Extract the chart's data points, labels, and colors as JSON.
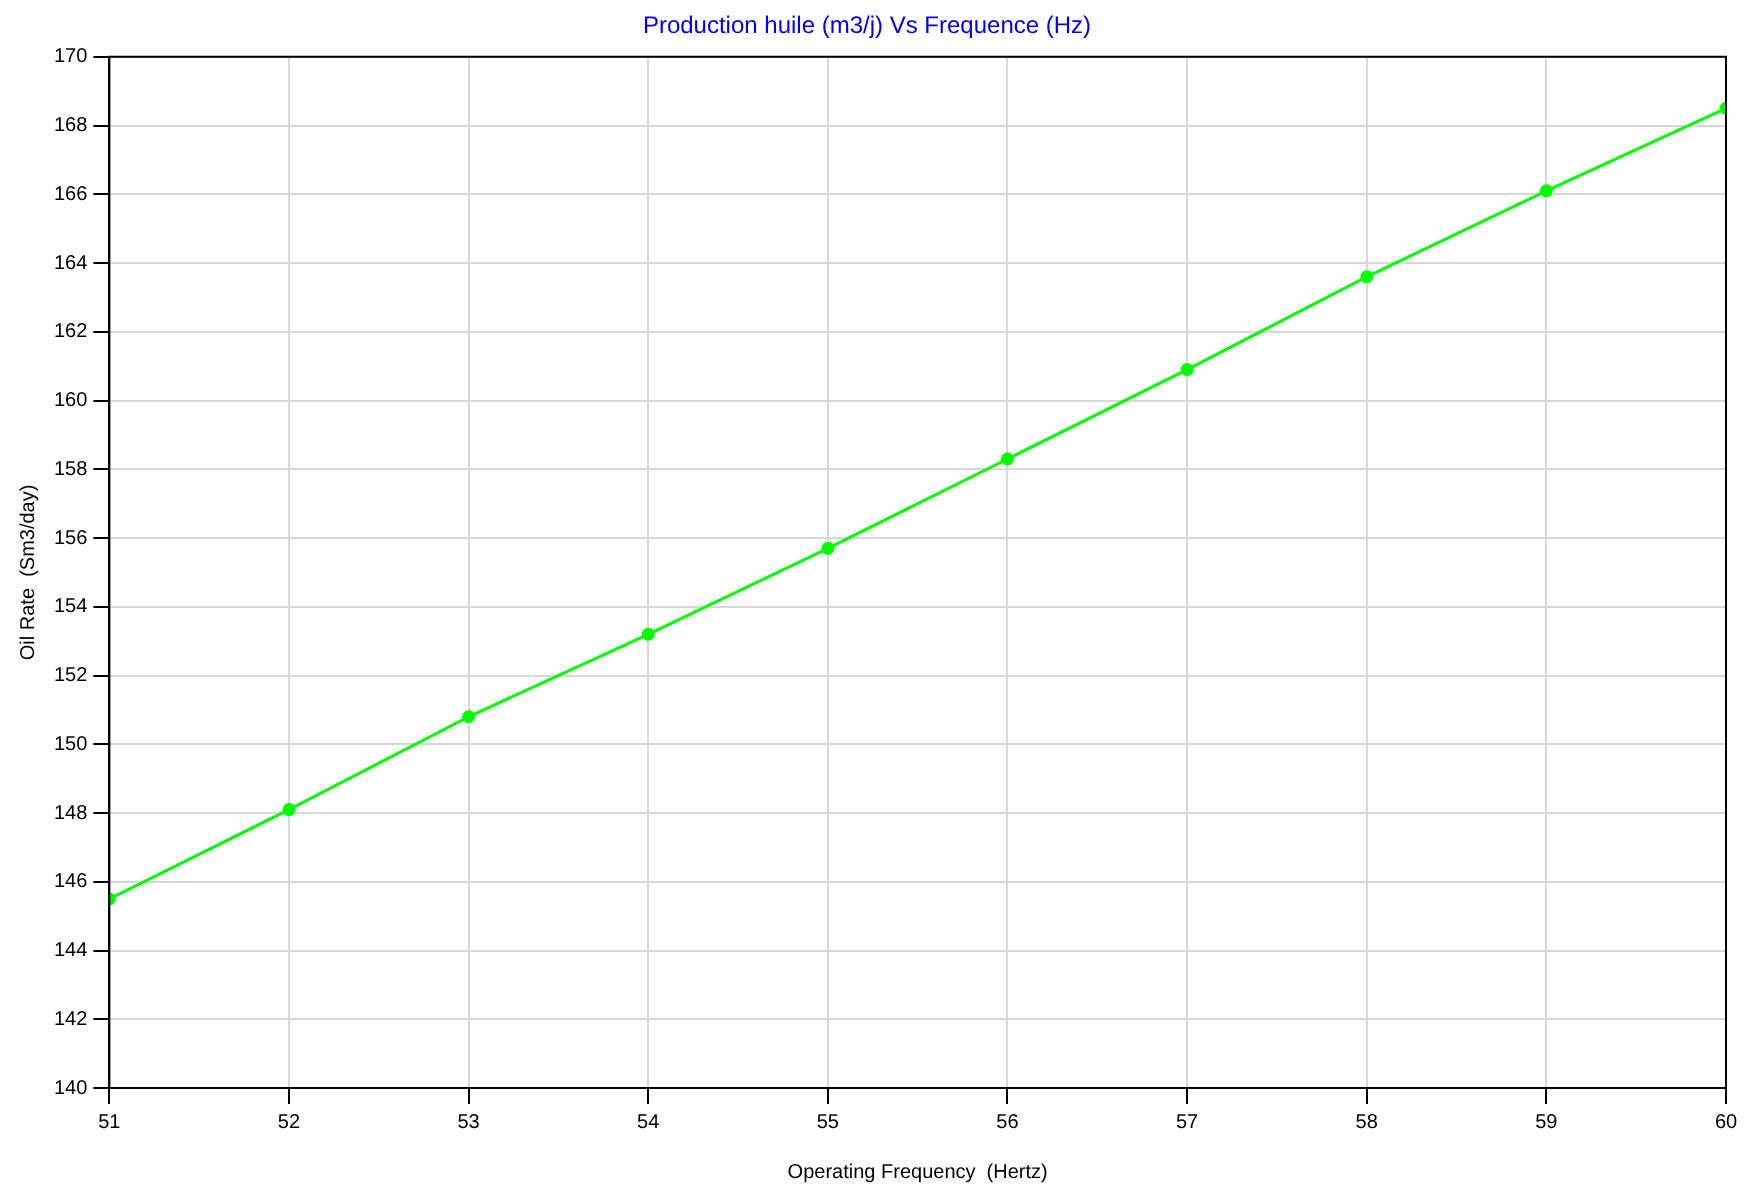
{
  "chart_data": {
    "type": "line",
    "title": "Production huile (m3/j) Vs Frequence (Hz)",
    "xlabel": "Operating Frequency  (Hertz)",
    "ylabel": "Oil Rate  (Sm3/day)",
    "x": [
      51,
      52,
      53,
      54,
      55,
      56,
      57,
      58,
      59,
      60
    ],
    "series": [
      {
        "color": "#00ff00",
        "values": [
          145.5,
          148.1,
          150.8,
          153.2,
          155.7,
          158.3,
          160.9,
          163.6,
          166.1,
          168.5
        ]
      }
    ],
    "xlim": [
      51,
      60
    ],
    "xticks": [
      51,
      52,
      53,
      54,
      55,
      56,
      57,
      58,
      59,
      60
    ],
    "ylim": [
      140,
      170
    ],
    "yticks": [
      140,
      142,
      144,
      146,
      148,
      150,
      152,
      154,
      156,
      158,
      160,
      162,
      164,
      166,
      168,
      170
    ],
    "grid": true,
    "legend": false,
    "marker": "circle",
    "line_style": "solid"
  }
}
